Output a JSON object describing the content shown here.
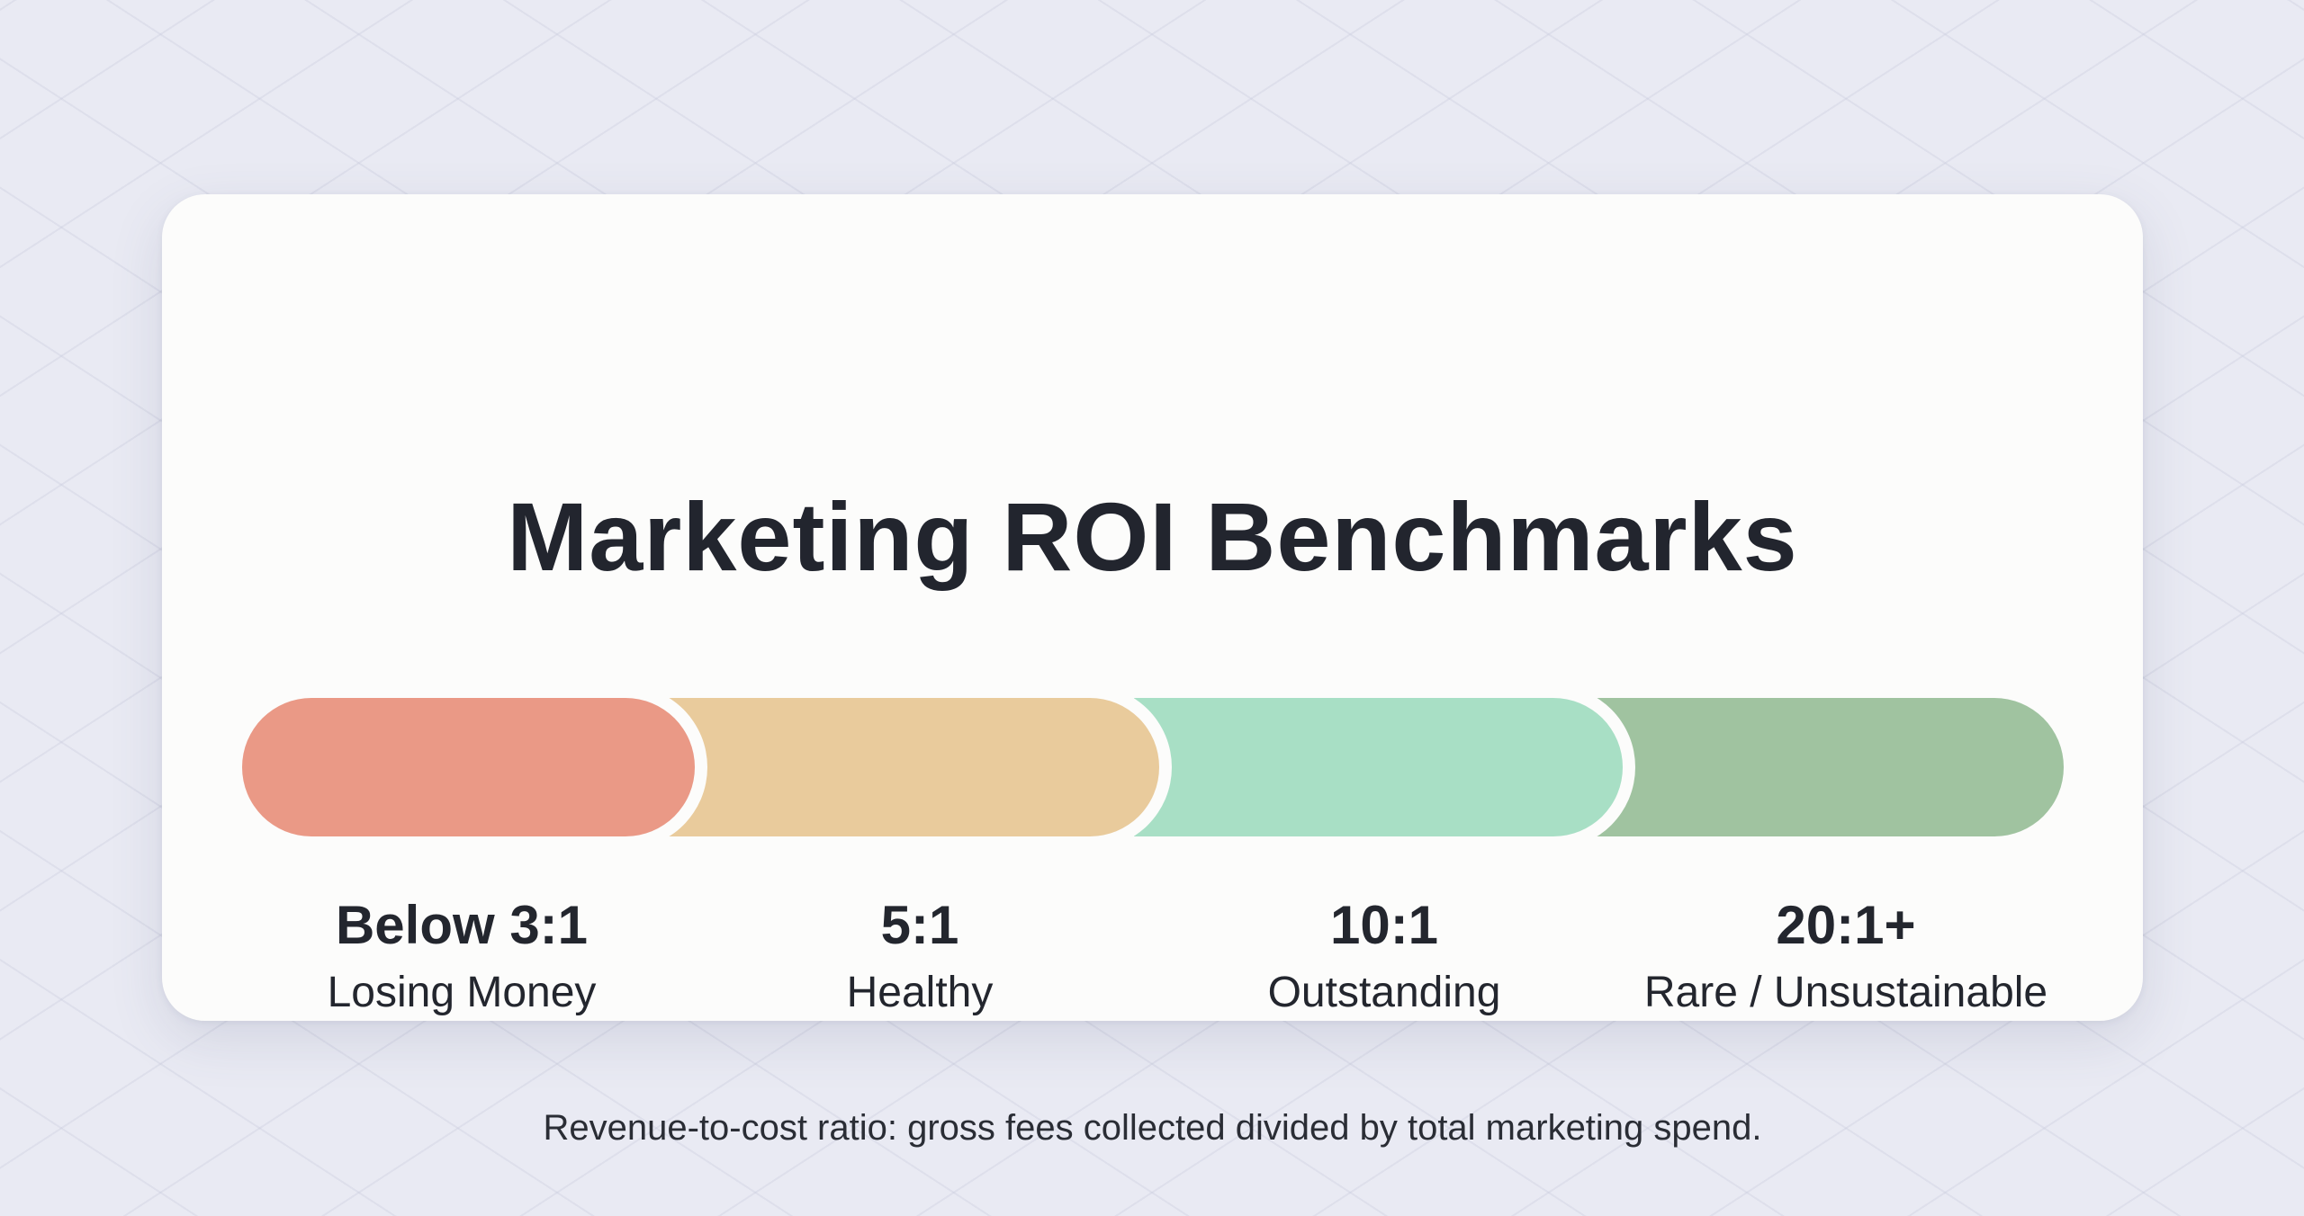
{
  "title": "Marketing ROI Benchmarks",
  "segments": [
    {
      "ratio": "Below 3:1",
      "label": "Losing Money",
      "color": "#ea9986"
    },
    {
      "ratio": "5:1",
      "label": "Healthy",
      "color": "#e9cb9c"
    },
    {
      "ratio": "10:1",
      "label": "Outstanding",
      "color": "#a8dfc5"
    },
    {
      "ratio": "20:1+",
      "label": "Rare / Unsustainable",
      "color": "#a0c3a0"
    }
  ],
  "footnote": "Revenue-to-cost ratio: gross fees collected divided by total marketing spend."
}
